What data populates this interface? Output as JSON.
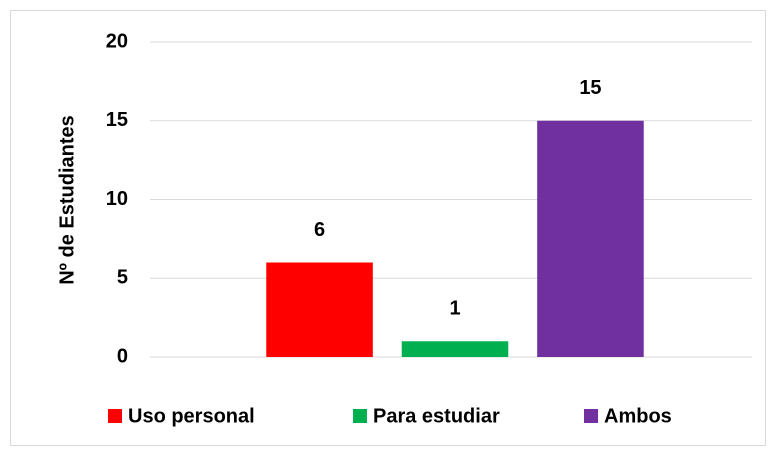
{
  "chart_data": {
    "type": "bar",
    "y_label": "Nº de Estudiantes",
    "categories": [
      null
    ],
    "series": [
      {
        "name": "Uso personal",
        "color": "#ff0000",
        "values": [
          6
        ]
      },
      {
        "name": "Para estudiar",
        "color": "#00b050",
        "values": [
          1
        ]
      },
      {
        "name": "Ambos",
        "color": "#7030a0",
        "values": [
          15
        ]
      }
    ],
    "ylim": [
      0,
      20
    ],
    "yticks": [
      0,
      5,
      10,
      15,
      20
    ],
    "grid": true,
    "legend": "bottom"
  }
}
